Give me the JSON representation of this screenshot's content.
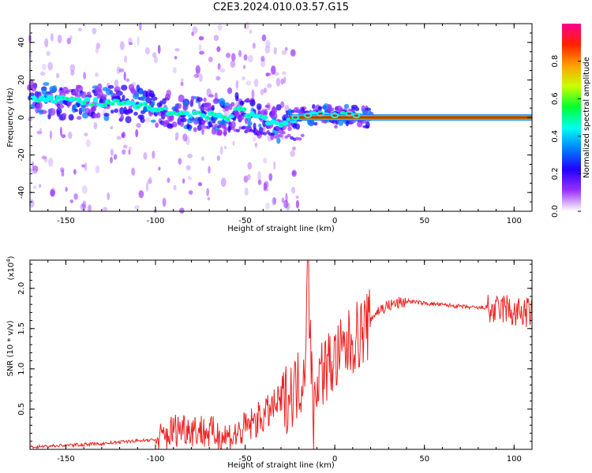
{
  "title": "C2E3.2024.010.03.57.G15",
  "chart_data": [
    {
      "type": "heatmap",
      "xlabel": "Height of straight line (km)",
      "ylabel": "Frequency (Hz)",
      "xlim": [
        -170,
        110
      ],
      "ylim": [
        -50,
        50
      ],
      "xticks": [
        -150,
        -100,
        -50,
        0,
        50,
        100
      ],
      "xtick_labels": [
        "-150",
        "-100",
        "-50",
        "0",
        "50",
        "100"
      ],
      "yticks": [
        -40,
        -20,
        0,
        20,
        40
      ],
      "ytick_labels": [
        "-40",
        "-20",
        "0",
        "20",
        "40"
      ],
      "ridge": {
        "x": [
          -170,
          -150,
          -130,
          -110,
          -100,
          -90,
          -80,
          -70,
          -60,
          -55,
          -50,
          -45,
          -40,
          -35,
          -30,
          -25,
          -20,
          -15,
          -10,
          -5,
          0,
          5,
          10,
          15,
          20,
          50,
          80,
          110
        ],
        "freq": [
          10,
          9,
          8,
          7,
          5,
          3,
          2,
          1,
          0,
          4,
          3,
          1,
          -1,
          -3,
          -4,
          -1,
          0,
          1,
          1,
          1,
          0,
          1,
          1,
          0,
          0,
          0,
          0,
          0
        ]
      },
      "colorbar": {
        "label": "Normalized spectral amplitude",
        "range": [
          0,
          1
        ],
        "ticks": [
          0.0,
          0.2,
          0.4,
          0.6,
          0.8
        ],
        "tick_labels": [
          "0.0",
          "0.2",
          "0.4",
          "0.6",
          "0.8"
        ],
        "colormap": [
          "#ffffff",
          "#9b30ff",
          "#2200ff",
          "#0080ff",
          "#00ffee",
          "#00ff30",
          "#c8ff00",
          "#ffa000",
          "#ff2000",
          "#ff0090"
        ]
      }
    },
    {
      "type": "line",
      "xlabel": "Height of straight line (km)",
      "ylabel": "SNR (10 * v/v)",
      "multiplier_label": "(x10",
      "multiplier_exponent": "4",
      "multiplier_close": ")",
      "xlim": [
        -170,
        110
      ],
      "ylim": [
        0,
        2.35
      ],
      "xticks": [
        -150,
        -100,
        -50,
        0,
        50,
        100
      ],
      "xtick_labels": [
        "-150",
        "-100",
        "-50",
        "0",
        "50",
        "100"
      ],
      "yticks": [
        0.5,
        1.0,
        1.5,
        2.0
      ],
      "ytick_labels": [
        "0.5",
        "1.0",
        "1.5",
        "2.0"
      ],
      "series": [
        {
          "color": "#ee2222",
          "x": [
            -170,
            -150,
            -130,
            -115,
            -100,
            -95,
            -90,
            -85,
            -80,
            -75,
            -70,
            -65,
            -60,
            -55,
            -50,
            -45,
            -40,
            -35,
            -30,
            -25,
            -20,
            -17,
            -15,
            -12,
            -10,
            -5,
            0,
            5,
            10,
            15,
            20,
            25,
            30,
            35,
            40,
            50,
            60,
            70,
            80,
            85,
            90,
            95,
            100,
            105,
            110
          ],
          "y": [
            0.03,
            0.05,
            0.07,
            0.1,
            0.12,
            0.2,
            0.28,
            0.32,
            0.3,
            0.28,
            0.25,
            0.22,
            0.2,
            0.22,
            0.3,
            0.38,
            0.45,
            0.55,
            0.65,
            0.78,
            0.9,
            1.05,
            2.35,
            0.4,
            1.0,
            1.1,
            1.2,
            1.3,
            1.45,
            1.55,
            1.65,
            1.75,
            1.8,
            1.83,
            1.85,
            1.82,
            1.8,
            1.78,
            1.76,
            1.77,
            1.75,
            1.8,
            1.72,
            1.74,
            1.73
          ]
        }
      ]
    }
  ]
}
